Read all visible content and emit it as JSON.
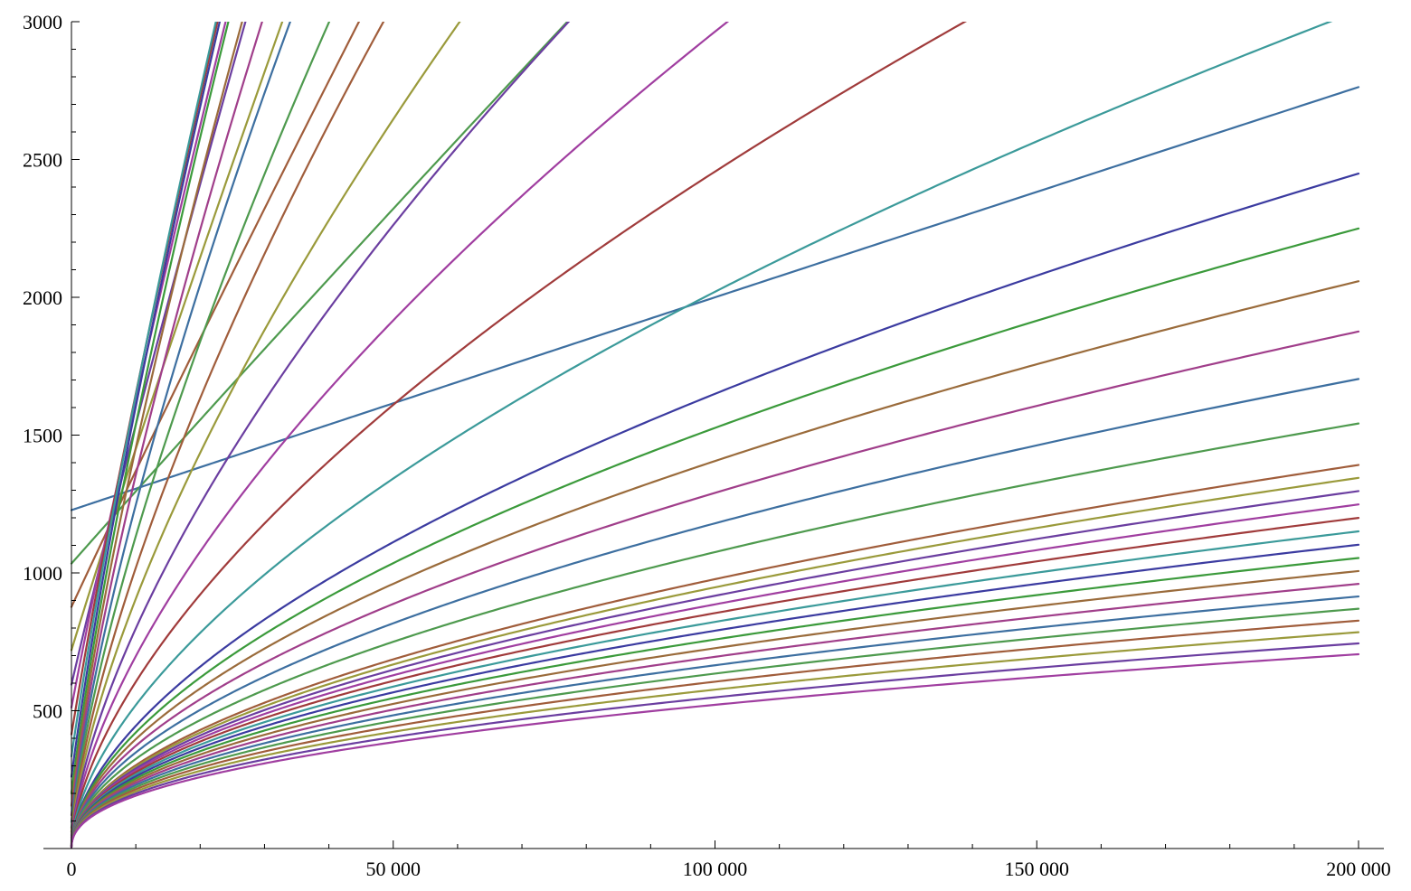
{
  "chart_data": {
    "type": "line",
    "title": "",
    "xlabel": "",
    "ylabel": "",
    "xlim": [
      0,
      200000
    ],
    "ylim": [
      0,
      3000
    ],
    "grid": false,
    "legend": "none",
    "x_ticks": [
      {
        "value": 0,
        "label": "0"
      },
      {
        "value": 50000,
        "label": "50 000"
      },
      {
        "value": 100000,
        "label": "100 000"
      },
      {
        "value": 150000,
        "label": "150 000"
      },
      {
        "value": 200000,
        "label": "200 000"
      }
    ],
    "y_ticks": [
      {
        "value": 500,
        "label": "500"
      },
      {
        "value": 1000,
        "label": "1000"
      },
      {
        "value": 1500,
        "label": "1500"
      },
      {
        "value": 2000,
        "label": "2000"
      },
      {
        "value": 2500,
        "label": "2500"
      },
      {
        "value": 3000,
        "label": "3000"
      }
    ],
    "x_minor_step": 10000,
    "y_minor_step": 100,
    "curve_model": "y = (a + b*x)^p",
    "series": [
      {
        "a": 1530.0,
        "b": 0.01,
        "p": 0.97,
        "color": "#3d6fa0"
      },
      {
        "a": 1490.0,
        "b": 0.04,
        "p": 0.95,
        "color": "#4e9a4e"
      },
      {
        "a": 1460.0,
        "b": 0.09,
        "p": 0.93,
        "color": "#a05d3b"
      },
      {
        "a": 1380.0,
        "b": 0.16,
        "p": 0.91,
        "color": "#9a9a3b"
      },
      {
        "a": 1310.0,
        "b": 0.25,
        "p": 0.89,
        "color": "#6b3ea0"
      },
      {
        "a": 1300.0,
        "b": 0.36,
        "p": 0.87,
        "color": "#a03ea0"
      },
      {
        "a": 1200.0,
        "b": 0.49,
        "p": 0.85,
        "color": "#a03b3b"
      },
      {
        "a": 1100.0,
        "b": 0.64,
        "p": 0.83,
        "color": "#3b9a9a"
      },
      {
        "a": 960.0,
        "b": 0.81,
        "p": 0.81,
        "color": "#3b3ba0"
      },
      {
        "a": 820.0,
        "b": 1.0,
        "p": 0.79,
        "color": "#3b9a3b"
      },
      {
        "a": 700.0,
        "b": 1.21,
        "p": 0.77,
        "color": "#9a6b3b"
      },
      {
        "a": 600.0,
        "b": 1.44,
        "p": 0.75,
        "color": "#a03e8a"
      },
      {
        "a": 520.0,
        "b": 1.69,
        "p": 0.73,
        "color": "#3d6fa0"
      },
      {
        "a": 440.0,
        "b": 1.96,
        "p": 0.71,
        "color": "#4e9a4e"
      },
      {
        "a": 380.0,
        "b": 2.25,
        "p": 0.69,
        "color": "#a05d3b"
      },
      {
        "a": 330.0,
        "b": 2.56,
        "p": 0.67,
        "color": "#9a9a3b"
      },
      {
        "a": 290.0,
        "b": 2.89,
        "p": 0.65,
        "color": "#6b3ea0"
      },
      {
        "a": 250.0,
        "b": 3.24,
        "p": 0.63,
        "color": "#a03ea0"
      },
      {
        "a": 220.0,
        "b": 3.61,
        "p": 0.61,
        "color": "#a03b3b"
      },
      {
        "a": 200.0,
        "b": 4.0,
        "p": 0.59,
        "color": "#3b9a9a"
      },
      {
        "a": 180.0,
        "b": 4.41,
        "p": 0.57,
        "color": "#3b3ba0"
      },
      {
        "a": 160.0,
        "b": 4.84,
        "p": 0.56,
        "color": "#3b9a3b"
      },
      {
        "a": 150.0,
        "b": 5.29,
        "p": 0.55,
        "color": "#9a6b3b"
      },
      {
        "a": 140.0,
        "b": 5.76,
        "p": 0.54,
        "color": "#a03e8a"
      },
      {
        "a": 130.0,
        "b": 6.25,
        "p": 0.53,
        "color": "#3d6fa0"
      },
      {
        "a": 120.0,
        "b": 6.76,
        "p": 0.52,
        "color": "#4e9a4e"
      },
      {
        "a": 110.0,
        "b": 7.29,
        "p": 0.51,
        "color": "#a05d3b"
      },
      {
        "a": 100.0,
        "b": 7.84,
        "p": 0.505,
        "color": "#9a9a3b"
      },
      {
        "a": 95.0,
        "b": 8.41,
        "p": 0.5,
        "color": "#6b3ea0"
      },
      {
        "a": 90.0,
        "b": 9.0,
        "p": 0.495,
        "color": "#a03ea0"
      },
      {
        "a": 85.0,
        "b": 9.61,
        "p": 0.49,
        "color": "#a03b3b"
      },
      {
        "a": 80.0,
        "b": 10.24,
        "p": 0.485,
        "color": "#3b9a9a"
      },
      {
        "a": 75.0,
        "b": 10.89,
        "p": 0.48,
        "color": "#3b3ba0"
      },
      {
        "a": 70.0,
        "b": 11.56,
        "p": 0.475,
        "color": "#3b9a3b"
      },
      {
        "a": 65.0,
        "b": 12.25,
        "p": 0.47,
        "color": "#9a6b3b"
      },
      {
        "a": 60.0,
        "b": 12.96,
        "p": 0.465,
        "color": "#a03e8a"
      },
      {
        "a": 55.0,
        "b": 13.69,
        "p": 0.46,
        "color": "#3d6fa0"
      },
      {
        "a": 50.0,
        "b": 14.44,
        "p": 0.455,
        "color": "#4e9a4e"
      },
      {
        "a": 45.0,
        "b": 15.21,
        "p": 0.45,
        "color": "#a05d3b"
      },
      {
        "a": 40.0,
        "b": 16.0,
        "p": 0.445,
        "color": "#9a9a3b"
      },
      {
        "a": 35.0,
        "b": 16.81,
        "p": 0.44,
        "color": "#6b3ea0"
      },
      {
        "a": 30.0,
        "b": 17.64,
        "p": 0.435,
        "color": "#a03ea0"
      }
    ]
  }
}
